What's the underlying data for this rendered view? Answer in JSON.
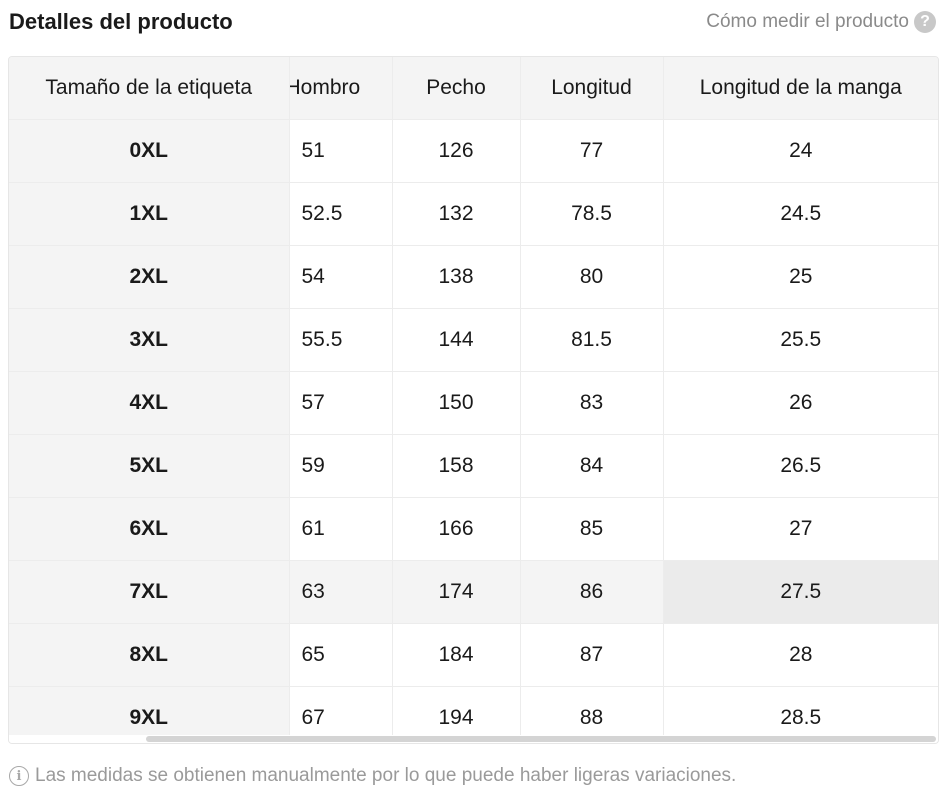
{
  "header": {
    "title": "Detalles del producto",
    "measure_link": "Cómo medir el producto",
    "help_icon": "question-circle-icon",
    "help_glyph": "?"
  },
  "table": {
    "columns": [
      "Tamaño de la etiqueta",
      "Hombro",
      "Pecho",
      "Longitud",
      "Longitud de la manga"
    ],
    "rows": [
      [
        "0XL",
        "51",
        "126",
        "77",
        "24"
      ],
      [
        "1XL",
        "52.5",
        "132",
        "78.5",
        "24.5"
      ],
      [
        "2XL",
        "54",
        "138",
        "80",
        "25"
      ],
      [
        "3XL",
        "55.5",
        "144",
        "81.5",
        "25.5"
      ],
      [
        "4XL",
        "57",
        "150",
        "83",
        "26"
      ],
      [
        "5XL",
        "59",
        "158",
        "84",
        "26.5"
      ],
      [
        "6XL",
        "61",
        "166",
        "85",
        "27"
      ],
      [
        "7XL",
        "63",
        "174",
        "86",
        "27.5"
      ],
      [
        "8XL",
        "65",
        "184",
        "87",
        "28"
      ],
      [
        "9XL",
        "67",
        "194",
        "88",
        "28.5"
      ]
    ],
    "highlighted_row_index": 7
  },
  "footnote": {
    "icon": "info-circle-icon",
    "icon_glyph": "i",
    "text": "Las medidas se obtienen manualmente por lo que puede haber ligeras variaciones."
  }
}
